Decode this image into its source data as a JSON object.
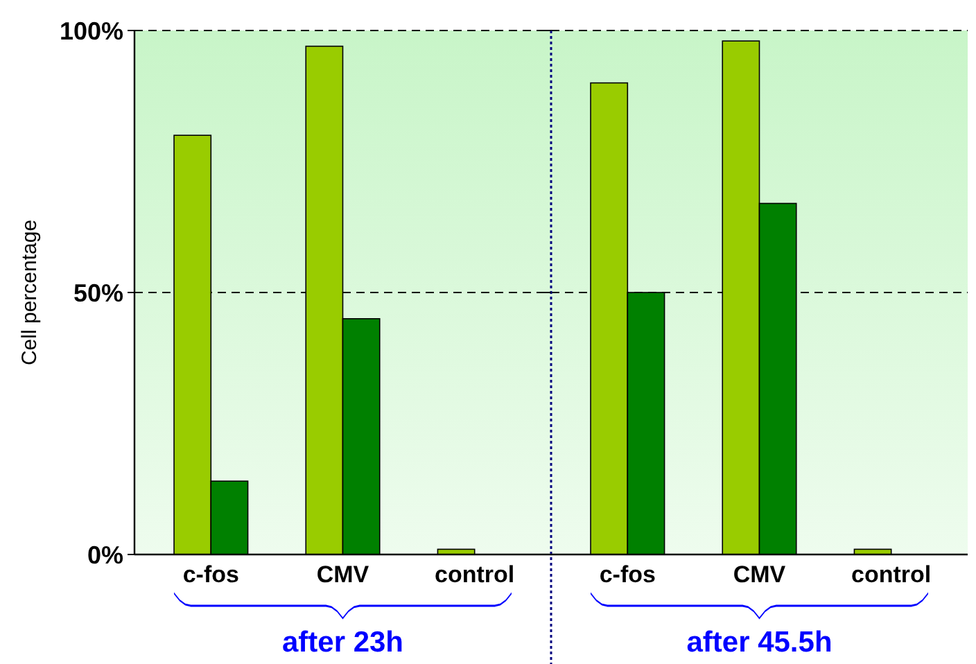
{
  "chart_data": [
    {
      "type": "bar",
      "xlabel": "after 23h",
      "ylabel": "Cell percentage",
      "categories": [
        "c-fos",
        "CMV",
        "control"
      ],
      "series": [
        {
          "color": "#99cc00",
          "values": [
            80,
            97,
            1
          ]
        },
        {
          "color": "#008000",
          "values": [
            14,
            45,
            0
          ]
        }
      ],
      "ylim": [
        0,
        100
      ],
      "yticks": [
        {
          "value": 0,
          "label": "0%"
        },
        {
          "value": 50,
          "label": "50%"
        },
        {
          "value": 100,
          "label": "100%"
        }
      ],
      "grid": "y"
    },
    {
      "type": "bar",
      "xlabel": "after 45.5h",
      "categories": [
        "c-fos",
        "CMV",
        "control"
      ],
      "series": [
        {
          "color": "#99cc00",
          "values": [
            90,
            98,
            1
          ]
        },
        {
          "color": "#008000",
          "values": [
            50,
            67,
            0
          ]
        }
      ],
      "ylim": [
        0,
        100
      ],
      "yticks": [
        {
          "value": 0,
          "label": null
        },
        {
          "value": 50,
          "label": null
        },
        {
          "value": 100,
          "label": null
        }
      ],
      "grid": "y",
      "tick_labels": "x"
    }
  ]
}
